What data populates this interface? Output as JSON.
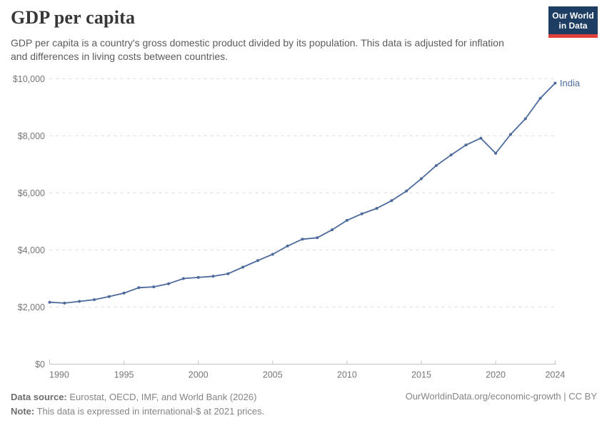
{
  "header": {
    "title": "GDP per capita",
    "subtitle": "GDP per capita is a country's gross domestic product divided by its population. This data is adjusted for inflation and differences in living costs between countries.",
    "logo": {
      "line1": "Our World",
      "line2": "in Data",
      "bg_color": "#1d3d63",
      "accent_color": "#e0403a"
    }
  },
  "chart_data": {
    "type": "line",
    "title": "GDP per capita",
    "entity": "India",
    "xlabel": "",
    "ylabel": "",
    "xlim": [
      1990,
      2024
    ],
    "ylim": [
      0,
      10000
    ],
    "grid": "horizontal-dashed",
    "legend_position": "end-of-line-label",
    "x_ticks": [
      1990,
      1995,
      2000,
      2005,
      2010,
      2015,
      2020,
      2024
    ],
    "y_ticks": [
      0,
      2000,
      4000,
      6000,
      8000,
      10000
    ],
    "y_tick_labels": [
      "$0",
      "$2,000",
      "$4,000",
      "$6,000",
      "$8,000",
      "$10,000"
    ],
    "series": [
      {
        "name": "India",
        "color": "#4C6A9C",
        "x": [
          1990,
          1991,
          1992,
          1993,
          1994,
          1995,
          1996,
          1997,
          1998,
          1999,
          2000,
          2001,
          2002,
          2003,
          2004,
          2005,
          2006,
          2007,
          2008,
          2009,
          2010,
          2011,
          2012,
          2013,
          2014,
          2015,
          2016,
          2017,
          2018,
          2019,
          2020,
          2021,
          2022,
          2023,
          2024
        ],
        "values": [
          2170,
          2140,
          2200,
          2260,
          2370,
          2490,
          2680,
          2710,
          2820,
          3000,
          3040,
          3080,
          3170,
          3400,
          3630,
          3850,
          4140,
          4380,
          4430,
          4710,
          5040,
          5270,
          5460,
          5730,
          6070,
          6500,
          6960,
          7330,
          7680,
          7920,
          7390,
          8050,
          8600,
          9320,
          9850
        ]
      }
    ],
    "style": {
      "grid_color": "#dcdcdc",
      "axis_color": "#c2c2c2",
      "tick_label_color": "#767676",
      "tick_label_size": 12.5,
      "line_width": 1.8,
      "dot_radius": 2,
      "end_label_size": 13
    }
  },
  "footer": {
    "source_label": "Data source:",
    "source_text": " Eurostat, OECD, IMF, and World Bank (2026)",
    "note_label": "Note:",
    "note_text": " This data is expressed in international-$ at 2021 prices.",
    "link_text": "OurWorldinData.org/economic-growth | CC BY"
  }
}
